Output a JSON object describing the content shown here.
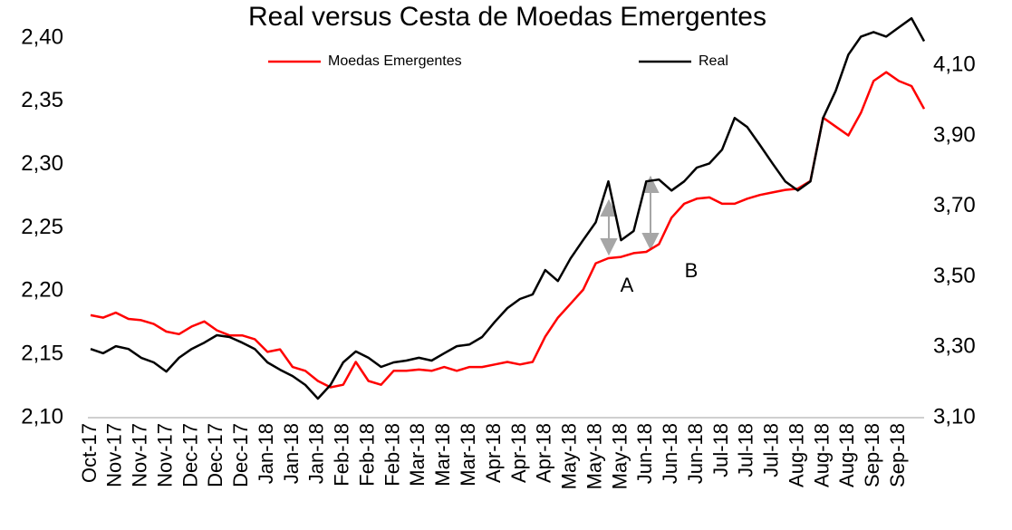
{
  "chart_data": {
    "type": "line",
    "title": "Real versus Cesta de Moedas Emergentes",
    "categories": [
      "Oct-17",
      null,
      "Nov-17",
      null,
      "Nov-17",
      null,
      "Nov-17",
      null,
      "Dec-17",
      null,
      "Dec-17",
      null,
      "Dec-17",
      null,
      "Jan-18",
      null,
      "Jan-18",
      null,
      "Jan-18",
      null,
      "Feb-18",
      null,
      "Feb-18",
      null,
      "Feb-18",
      null,
      "Mar-18",
      null,
      "Mar-18",
      null,
      "Mar-18",
      null,
      "Apr-18",
      null,
      "Apr-18",
      null,
      "Apr-18",
      null,
      "May-18",
      null,
      "May-18",
      null,
      "May-18",
      null,
      "Jun-18",
      null,
      "Jun-18",
      null,
      "Jun-18",
      null,
      "Jul-18",
      null,
      "Jul-18",
      null,
      "Jul-18",
      null,
      "Aug-18",
      null,
      "Aug-18",
      null,
      "Aug-18",
      null,
      "Sep-18",
      null,
      "Sep-18",
      null,
      null
    ],
    "series": [
      {
        "name": "Moedas Emergentes",
        "color": "#ff0000",
        "axis": "y",
        "values": [
          2.181,
          2.179,
          2.183,
          2.178,
          2.177,
          2.174,
          2.168,
          2.166,
          2.172,
          2.176,
          2.169,
          2.165,
          2.165,
          2.162,
          2.152,
          2.154,
          2.14,
          2.137,
          2.129,
          2.124,
          2.126,
          2.144,
          2.129,
          2.126,
          2.137,
          2.137,
          2.138,
          2.137,
          2.14,
          2.137,
          2.14,
          2.14,
          2.142,
          2.144,
          2.142,
          2.144,
          2.164,
          2.179,
          2.19,
          2.201,
          2.222,
          2.226,
          2.227,
          2.23,
          2.231,
          2.237,
          2.258,
          2.269,
          2.273,
          2.274,
          2.269,
          2.269,
          2.273,
          2.276,
          2.278,
          2.28,
          2.281,
          2.287,
          2.337,
          2.33,
          2.323,
          2.341,
          2.366,
          2.373,
          2.366,
          2.362,
          2.344
        ]
      },
      {
        "name": "Real",
        "color": "#000000",
        "axis": "y2",
        "values": [
          3.295,
          3.283,
          3.303,
          3.295,
          3.27,
          3.257,
          3.231,
          3.27,
          3.295,
          3.313,
          3.334,
          3.329,
          3.313,
          3.295,
          3.257,
          3.236,
          3.218,
          3.193,
          3.154,
          3.193,
          3.257,
          3.288,
          3.27,
          3.244,
          3.257,
          3.262,
          3.27,
          3.262,
          3.283,
          3.303,
          3.308,
          3.329,
          3.372,
          3.411,
          3.437,
          3.45,
          3.519,
          3.488,
          3.552,
          3.604,
          3.655,
          3.771,
          3.604,
          3.63,
          3.771,
          3.776,
          3.745,
          3.771,
          3.81,
          3.822,
          3.861,
          3.951,
          3.925,
          3.874,
          3.822,
          3.771,
          3.745,
          3.771,
          3.951,
          4.028,
          4.131,
          4.182,
          4.195,
          4.182,
          4.208,
          4.234,
          4.169
        ]
      }
    ],
    "ylim": [
      2.1,
      2.42
    ],
    "yticks": [
      {
        "value": 2.1,
        "label": "2,10"
      },
      {
        "value": 2.15,
        "label": "2,15"
      },
      {
        "value": 2.2,
        "label": "2,20"
      },
      {
        "value": 2.25,
        "label": "2,25"
      },
      {
        "value": 2.3,
        "label": "2,30"
      },
      {
        "value": 2.35,
        "label": "2,35"
      },
      {
        "value": 2.4,
        "label": "2,40"
      }
    ],
    "y2lim": [
      3.1,
      4.25
    ],
    "y2ticks": [
      {
        "value": 3.1,
        "label": "3,10"
      },
      {
        "value": 3.3,
        "label": "3,30"
      },
      {
        "value": 3.5,
        "label": "3,50"
      },
      {
        "value": 3.7,
        "label": "3,70"
      },
      {
        "value": 3.9,
        "label": "3,90"
      },
      {
        "value": 4.1,
        "label": "4,10"
      }
    ],
    "legend": "top",
    "annotations": [
      "A",
      "B"
    ]
  }
}
